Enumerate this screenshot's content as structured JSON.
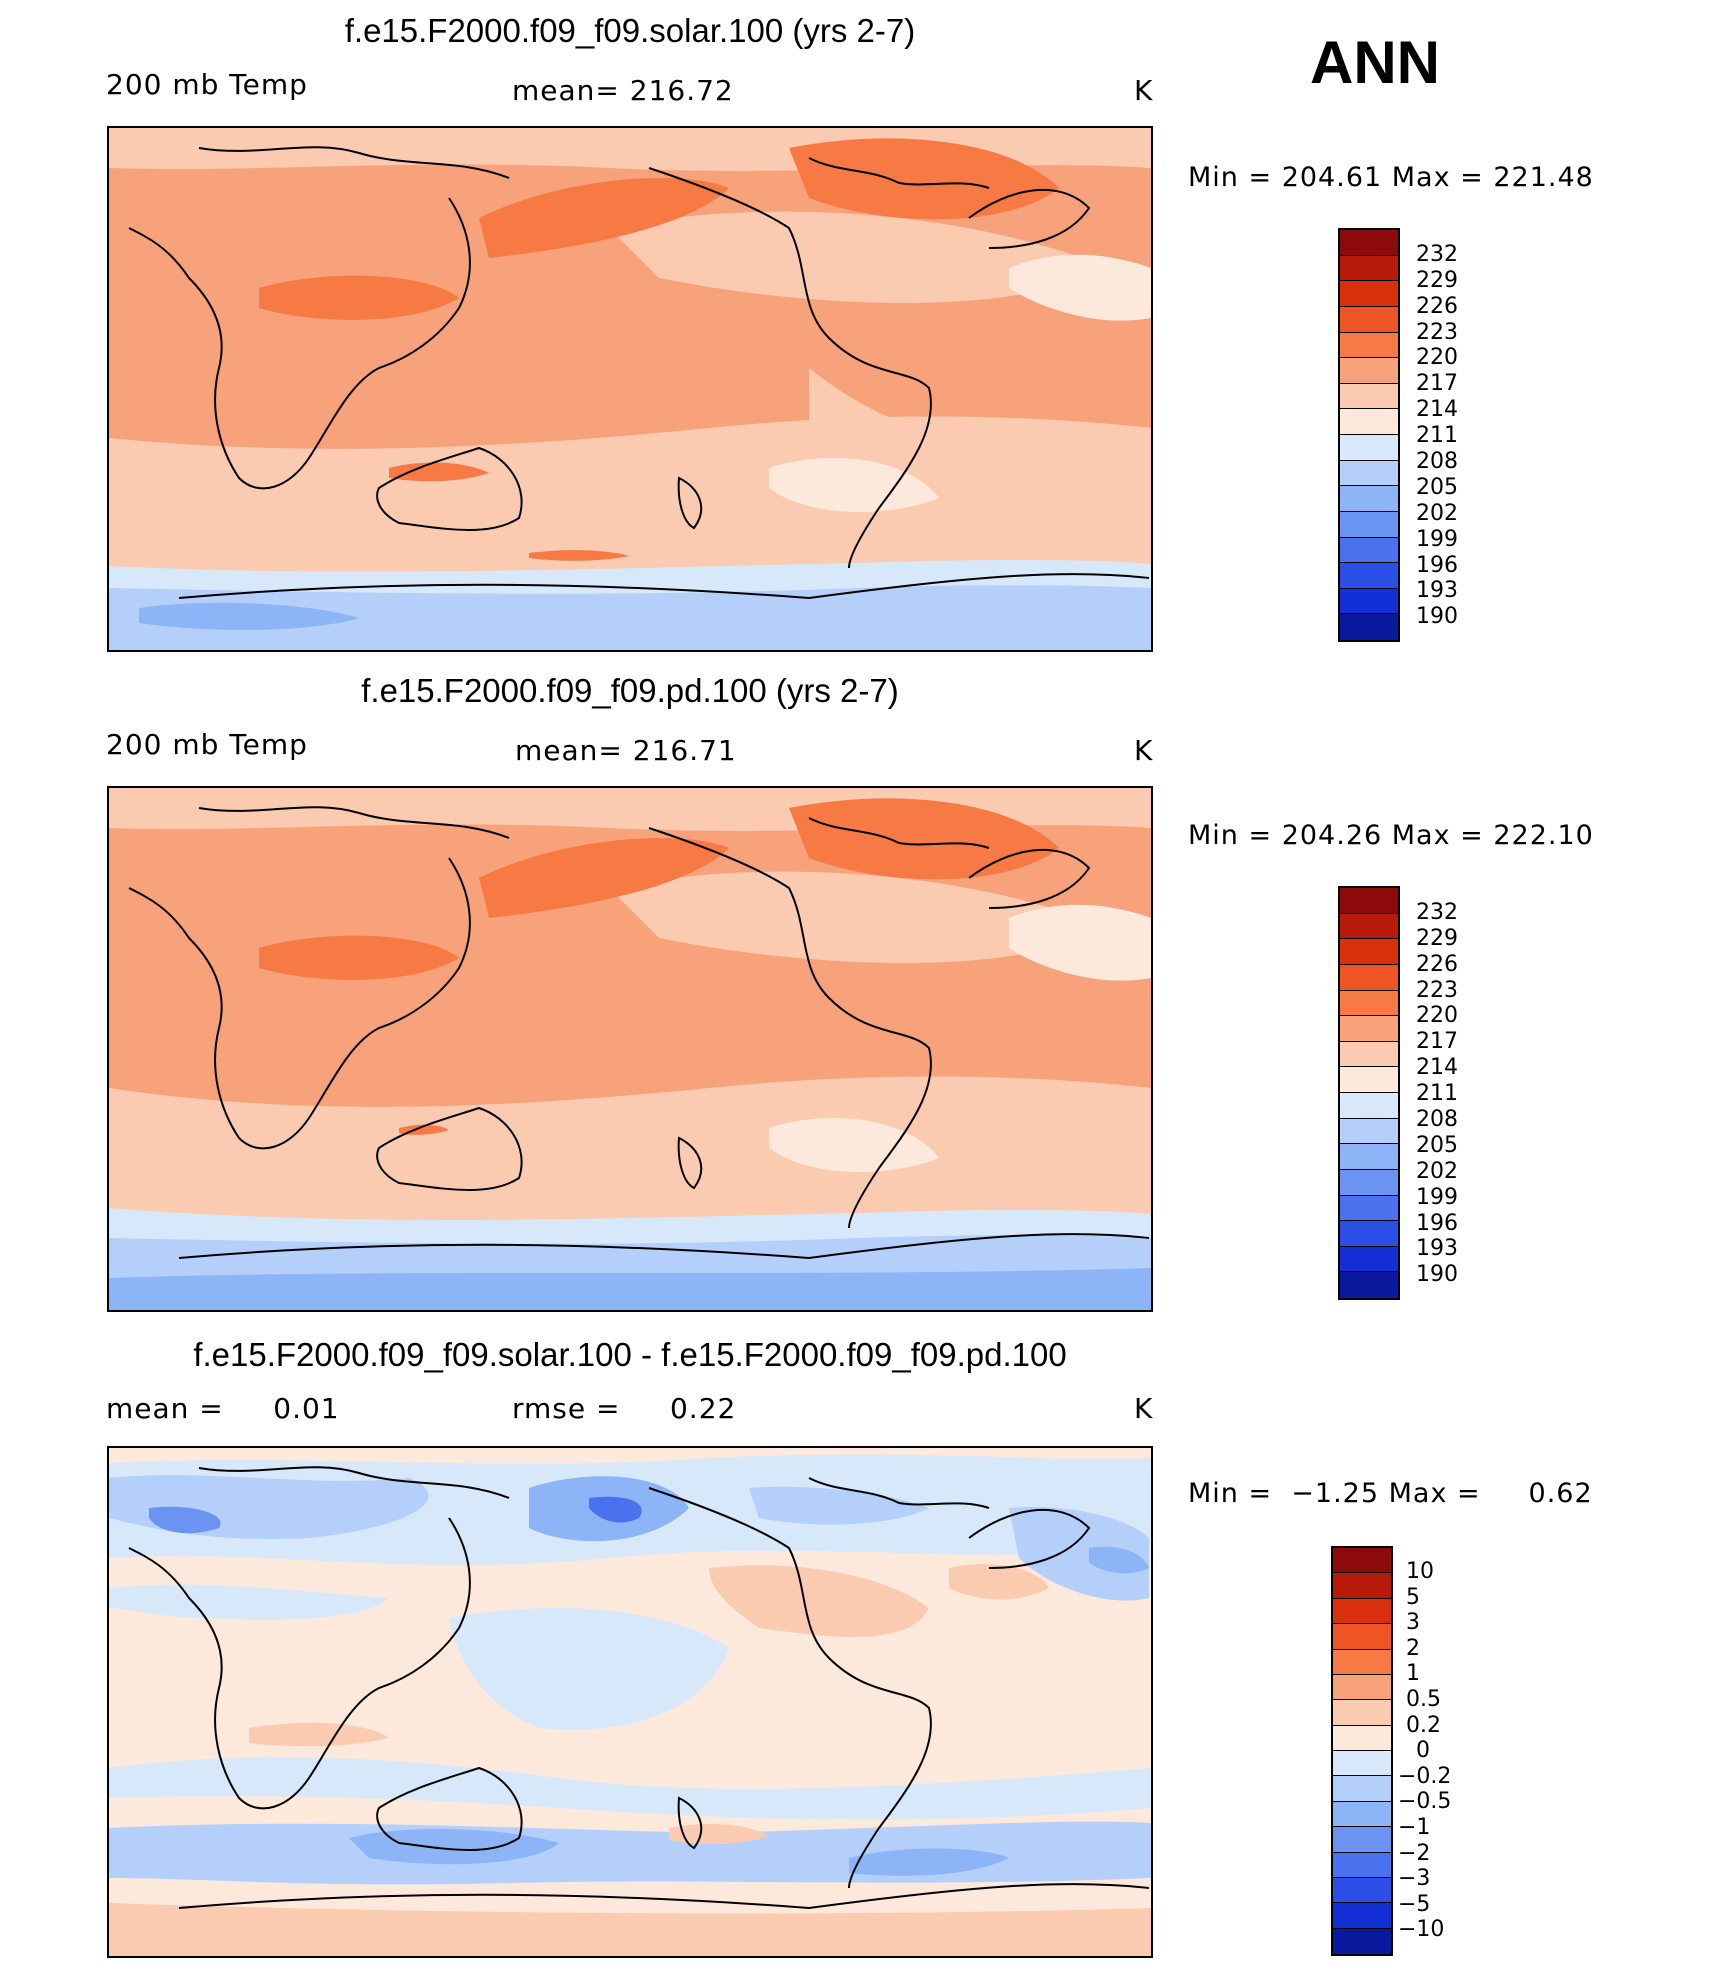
{
  "season": "ANN",
  "panels": [
    {
      "title": "f.e15.F2000.f09_f09.solar.100 (yrs 2-7)",
      "left_label": "200 mb Temp",
      "center_label": "mean= 216.72",
      "units": "K",
      "minmax": "Min = 204.61 Max = 221.48",
      "colorbar": {
        "labels": [
          "232",
          "229",
          "226",
          "223",
          "220",
          "217",
          "214",
          "211",
          "208",
          "205",
          "202",
          "199",
          "196",
          "193",
          "190"
        ],
        "colors": [
          "#8c0a0a",
          "#b81a0a",
          "#d8300c",
          "#ef5524",
          "#f77a44",
          "#f8a27c",
          "#fbcbb1",
          "#fde9dc",
          "#d6e8fa",
          "#b3cffa",
          "#8db4f7",
          "#6b93f2",
          "#4a72ee",
          "#2a4ee6",
          "#1330d6",
          "#0a1a9e"
        ]
      }
    },
    {
      "title": "f.e15.F2000.f09_f09.pd.100 (yrs 2-7)",
      "left_label": "200 mb Temp",
      "center_label": "mean= 216.71",
      "units": "K",
      "minmax": "Min = 204.26 Max = 222.10",
      "colorbar": {
        "labels": [
          "232",
          "229",
          "226",
          "223",
          "220",
          "217",
          "214",
          "211",
          "208",
          "205",
          "202",
          "199",
          "196",
          "193",
          "190"
        ],
        "colors": [
          "#8c0a0a",
          "#b81a0a",
          "#d8300c",
          "#ef5524",
          "#f77a44",
          "#f8a27c",
          "#fbcbb1",
          "#fde9dc",
          "#d6e8fa",
          "#b3cffa",
          "#8db4f7",
          "#6b93f2",
          "#4a72ee",
          "#2a4ee6",
          "#1330d6",
          "#0a1a9e"
        ]
      }
    },
    {
      "title": "f.e15.F2000.f09_f09.solar.100 - f.e15.F2000.f09_f09.pd.100",
      "left_label": "mean =     0.01",
      "center_label": "rmse =     0.22",
      "units": "K",
      "minmax": "Min =  −1.25 Max =     0.62",
      "colorbar": {
        "labels": [
          "10",
          "5",
          "3",
          "2",
          "1",
          "0.5",
          "0.2",
          "0",
          "−0.2",
          "−0.5",
          "−1",
          "−2",
          "−3",
          "−5",
          "−10"
        ],
        "colors": [
          "#8c0a0a",
          "#b81a0a",
          "#d8300c",
          "#ef5524",
          "#f77a44",
          "#f8a27c",
          "#fbcbb1",
          "#fde9dc",
          "#d6e8fa",
          "#b3cffa",
          "#8db4f7",
          "#6b93f2",
          "#4a72ee",
          "#2a4ee6",
          "#1330d6",
          "#0a1a9e"
        ]
      }
    }
  ]
}
